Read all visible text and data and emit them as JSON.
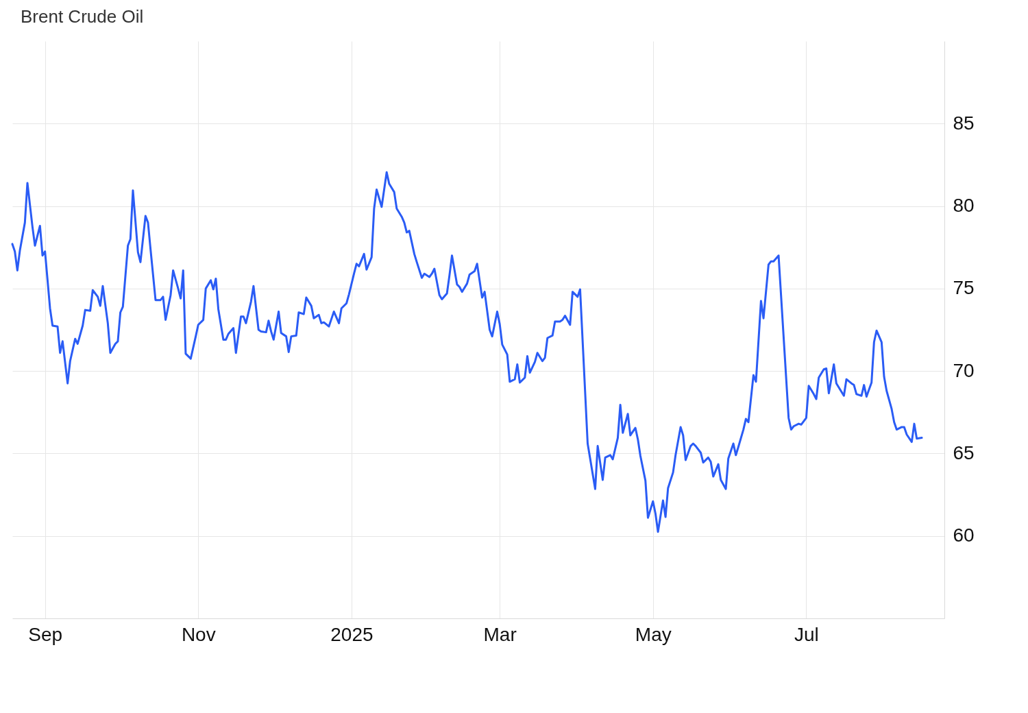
{
  "chart_data": {
    "type": "line",
    "title": "Brent Crude Oil",
    "x": [
      "2024-08-19",
      "2024-08-20",
      "2024-08-21",
      "2024-08-22",
      "2024-08-24",
      "2024-08-25",
      "2024-08-27",
      "2024-08-28",
      "2024-08-30",
      "2024-08-31",
      "2024-09-01",
      "2024-09-03",
      "2024-09-04",
      "2024-09-06",
      "2024-09-07",
      "2024-09-08",
      "2024-09-10",
      "2024-09-11",
      "2024-09-13",
      "2024-09-14",
      "2024-09-16",
      "2024-09-17",
      "2024-09-19",
      "2024-09-20",
      "2024-09-22",
      "2024-09-23",
      "2024-09-24",
      "2024-09-26",
      "2024-09-27",
      "2024-09-29",
      "2024-09-30",
      "2024-10-01",
      "2024-10-02",
      "2024-10-04",
      "2024-10-05",
      "2024-10-06",
      "2024-10-08",
      "2024-10-09",
      "2024-10-11",
      "2024-10-12",
      "2024-10-13",
      "2024-10-15",
      "2024-10-17",
      "2024-10-18",
      "2024-10-19",
      "2024-10-21",
      "2024-10-22",
      "2024-10-24",
      "2024-10-25",
      "2024-10-26",
      "2024-10-27",
      "2024-10-29",
      "2024-10-31",
      "2024-11-01",
      "2024-11-03",
      "2024-11-04",
      "2024-11-06",
      "2024-11-07",
      "2024-11-08",
      "2024-11-09",
      "2024-11-11",
      "2024-11-12",
      "2024-11-13",
      "2024-11-15",
      "2024-11-16",
      "2024-11-18",
      "2024-11-19",
      "2024-11-20",
      "2024-11-22",
      "2024-11-23",
      "2024-11-25",
      "2024-11-26",
      "2024-11-28",
      "2024-11-29",
      "2024-11-30",
      "2024-12-01",
      "2024-12-03",
      "2024-12-04",
      "2024-12-06",
      "2024-12-07",
      "2024-12-08",
      "2024-12-10",
      "2024-12-11",
      "2024-12-13",
      "2024-12-14",
      "2024-12-16",
      "2024-12-17",
      "2024-12-19",
      "2024-12-20",
      "2024-12-21",
      "2024-12-23",
      "2024-12-24",
      "2024-12-25",
      "2024-12-27",
      "2024-12-28",
      "2024-12-30",
      "2024-12-31",
      "2025-01-02",
      "2025-01-03",
      "2025-01-04",
      "2025-01-06",
      "2025-01-07",
      "2025-01-09",
      "2025-01-10",
      "2025-01-11",
      "2025-01-13",
      "2025-01-15",
      "2025-01-16",
      "2025-01-18",
      "2025-01-19",
      "2025-01-21",
      "2025-01-22",
      "2025-01-23",
      "2025-01-24",
      "2025-01-26",
      "2025-01-27",
      "2025-01-29",
      "2025-01-30",
      "2025-02-01",
      "2025-02-02",
      "2025-02-03",
      "2025-02-05",
      "2025-02-06",
      "2025-02-08",
      "2025-02-09",
      "2025-02-10",
      "2025-02-12",
      "2025-02-13",
      "2025-02-14",
      "2025-02-16",
      "2025-02-17",
      "2025-02-19",
      "2025-02-20",
      "2025-02-22",
      "2025-02-23",
      "2025-02-25",
      "2025-02-26",
      "2025-02-28",
      "2025-03-01",
      "2025-03-02",
      "2025-03-04",
      "2025-03-05",
      "2025-03-07",
      "2025-03-08",
      "2025-03-09",
      "2025-03-11",
      "2025-03-12",
      "2025-03-13",
      "2025-03-15",
      "2025-03-16",
      "2025-03-18",
      "2025-03-19",
      "2025-03-20",
      "2025-03-22",
      "2025-03-23",
      "2025-03-25",
      "2025-03-26",
      "2025-03-27",
      "2025-03-29",
      "2025-03-30",
      "2025-04-01",
      "2025-04-02",
      "2025-04-05",
      "2025-04-08",
      "2025-04-09",
      "2025-04-11",
      "2025-04-12",
      "2025-04-14",
      "2025-04-15",
      "2025-04-17",
      "2025-04-18",
      "2025-04-19",
      "2025-04-21",
      "2025-04-22",
      "2025-04-24",
      "2025-04-25",
      "2025-04-26",
      "2025-04-28",
      "2025-04-29",
      "2025-05-01",
      "2025-05-02",
      "2025-05-03",
      "2025-05-05",
      "2025-05-06",
      "2025-05-07",
      "2025-05-09",
      "2025-05-10",
      "2025-05-12",
      "2025-05-13",
      "2025-05-14",
      "2025-05-16",
      "2025-05-17",
      "2025-05-18",
      "2025-05-20",
      "2025-05-21",
      "2025-05-23",
      "2025-05-24",
      "2025-05-25",
      "2025-05-27",
      "2025-05-28",
      "2025-05-30",
      "2025-05-31",
      "2025-06-02",
      "2025-06-03",
      "2025-06-04",
      "2025-06-06",
      "2025-06-07",
      "2025-06-08",
      "2025-06-10",
      "2025-06-11",
      "2025-06-13",
      "2025-06-14",
      "2025-06-16",
      "2025-06-17",
      "2025-06-18",
      "2025-06-20",
      "2025-06-24",
      "2025-06-25",
      "2025-06-26",
      "2025-06-28",
      "2025-06-29",
      "2025-07-01",
      "2025-07-02",
      "2025-07-04",
      "2025-07-05",
      "2025-07-06",
      "2025-07-08",
      "2025-07-09",
      "2025-07-10",
      "2025-07-12",
      "2025-07-13",
      "2025-07-15",
      "2025-07-16",
      "2025-07-17",
      "2025-07-19",
      "2025-07-20",
      "2025-07-21",
      "2025-07-23",
      "2025-07-24",
      "2025-07-25",
      "2025-07-27",
      "2025-07-28",
      "2025-07-29",
      "2025-07-31",
      "2025-08-01",
      "2025-08-02",
      "2025-08-04",
      "2025-08-05",
      "2025-08-06",
      "2025-08-08",
      "2025-08-09",
      "2025-08-10",
      "2025-08-12",
      "2025-08-13",
      "2025-08-14",
      "2025-08-16"
    ],
    "series": [
      {
        "color": "#2a5cf5",
        "values": [
          77.7,
          77.25,
          76.1,
          77.3,
          79.0,
          81.4,
          78.75,
          77.6,
          78.8,
          77.0,
          77.25,
          73.8,
          72.75,
          72.7,
          71.1,
          71.8,
          69.25,
          70.6,
          71.95,
          71.65,
          72.75,
          73.7,
          73.65,
          74.9,
          74.5,
          73.95,
          75.15,
          72.9,
          71.1,
          71.65,
          71.8,
          73.55,
          73.9,
          77.6,
          78.0,
          80.95,
          77.2,
          76.6,
          79.4,
          79.0,
          77.4,
          74.3,
          74.3,
          74.5,
          73.1,
          74.6,
          76.1,
          75.0,
          74.4,
          76.1,
          71.05,
          70.75,
          72.1,
          72.8,
          73.1,
          75.0,
          75.5,
          74.95,
          75.6,
          73.75,
          71.9,
          71.9,
          72.25,
          72.6,
          71.1,
          73.3,
          73.3,
          72.9,
          74.2,
          75.15,
          72.5,
          72.4,
          72.35,
          73.05,
          72.4,
          71.9,
          73.6,
          72.3,
          72.1,
          71.15,
          72.1,
          72.15,
          73.55,
          73.45,
          74.45,
          73.95,
          73.2,
          73.4,
          72.9,
          72.95,
          72.7,
          73.15,
          73.6,
          72.9,
          73.8,
          74.1,
          74.65,
          75.9,
          76.5,
          76.35,
          77.1,
          76.15,
          76.9,
          79.85,
          81.0,
          79.95,
          82.05,
          81.35,
          80.85,
          79.85,
          79.35,
          79.0,
          78.4,
          78.5,
          77.1,
          76.6,
          75.65,
          75.9,
          75.7,
          75.9,
          76.2,
          74.6,
          74.35,
          74.7,
          75.8,
          77.0,
          75.25,
          75.1,
          74.8,
          75.3,
          75.85,
          76.05,
          76.5,
          74.45,
          74.8,
          72.5,
          72.1,
          73.6,
          72.85,
          71.6,
          71.0,
          69.35,
          69.5,
          70.4,
          69.3,
          69.6,
          70.9,
          69.9,
          70.55,
          71.1,
          70.6,
          70.8,
          72.0,
          72.15,
          73.0,
          73.0,
          73.1,
          73.35,
          72.8,
          74.8,
          74.5,
          74.95,
          65.6,
          62.85,
          65.45,
          63.4,
          64.75,
          64.9,
          64.65,
          65.95,
          67.95,
          66.25,
          67.4,
          66.1,
          66.55,
          65.85,
          64.85,
          63.35,
          61.1,
          62.1,
          61.35,
          60.25,
          62.15,
          61.15,
          62.9,
          63.85,
          64.9,
          66.6,
          66.1,
          64.6,
          65.45,
          65.6,
          65.45,
          65.05,
          64.45,
          64.75,
          64.5,
          63.6,
          64.35,
          63.4,
          62.85,
          64.7,
          65.6,
          64.9,
          65.4,
          66.45,
          67.1,
          66.9,
          69.75,
          69.35,
          74.25,
          73.2,
          76.45,
          76.65,
          76.65,
          77.0,
          67.15,
          66.45,
          66.65,
          66.8,
          66.75,
          67.15,
          69.1,
          68.6,
          68.3,
          69.6,
          70.1,
          70.15,
          68.65,
          70.4,
          69.25,
          68.75,
          68.5,
          69.5,
          69.25,
          69.15,
          68.6,
          68.5,
          69.15,
          68.45,
          69.3,
          71.75,
          72.45,
          71.75,
          69.65,
          68.8,
          67.7,
          66.9,
          66.45,
          66.6,
          66.6,
          66.15,
          65.7,
          66.8,
          65.9,
          65.95
        ]
      }
    ],
    "xlim": [
      "2024-08-19",
      "2025-08-25"
    ],
    "ylim": [
      55,
      90
    ],
    "xticks": [
      {
        "value": "2024-09-01",
        "label": "Sep"
      },
      {
        "value": "2024-11-01",
        "label": "Nov"
      },
      {
        "value": "2025-01-01",
        "label": "2025"
      },
      {
        "value": "2025-03-01",
        "label": "Mar"
      },
      {
        "value": "2025-05-01",
        "label": "May"
      },
      {
        "value": "2025-07-01",
        "label": "Jul"
      }
    ],
    "yticks": [
      60,
      65,
      70,
      75,
      80,
      85
    ],
    "grid": true
  }
}
